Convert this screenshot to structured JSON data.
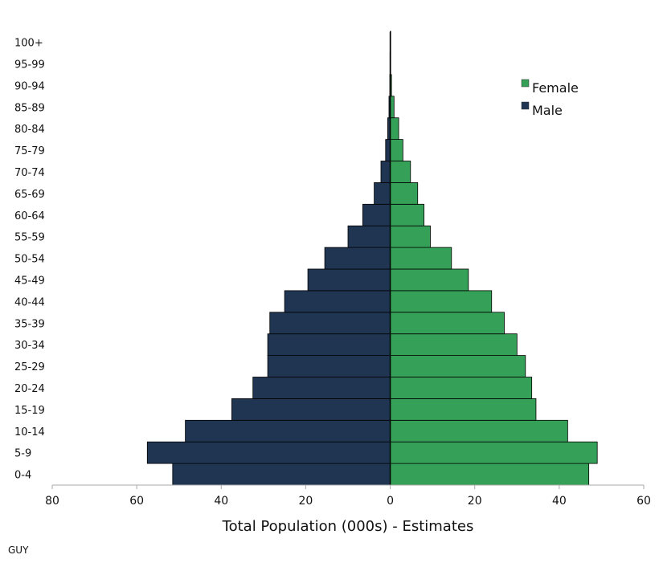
{
  "chart_data": {
    "type": "bar",
    "orientation": "horizontal",
    "subtype": "population-pyramid",
    "title": "",
    "xlabel": "Total Population (000s) - Estimates",
    "ylabel": "",
    "xlim": [
      -80,
      60
    ],
    "x_ticks": [
      -80,
      -60,
      -40,
      -20,
      0,
      20,
      40,
      60
    ],
    "x_tick_labels": [
      "80",
      "60",
      "40",
      "20",
      "0",
      "20",
      "40",
      "60"
    ],
    "grid": false,
    "legend_position": "top-right",
    "categories": [
      "0-4",
      "5-9",
      "10-14",
      "15-19",
      "20-24",
      "25-29",
      "30-34",
      "35-39",
      "40-44",
      "45-49",
      "50-54",
      "55-59",
      "60-64",
      "65-69",
      "70-74",
      "75-79",
      "80-84",
      "85-89",
      "90-94",
      "95-99",
      "100+"
    ],
    "series": [
      {
        "name": "Female",
        "color": "#35a057",
        "values": [
          47,
          49,
          42,
          34.5,
          33.5,
          32,
          30,
          27,
          24,
          18.5,
          14.5,
          9.5,
          8,
          6.5,
          4.8,
          3,
          2,
          0.9,
          0.3,
          0.1,
          0.05
        ]
      },
      {
        "name": "Male",
        "color": "#1f3552",
        "values": [
          51.5,
          57.5,
          48.5,
          37.5,
          32.5,
          29,
          29,
          28.5,
          25,
          19.5,
          15.5,
          10,
          6.5,
          3.8,
          2.2,
          1.1,
          0.6,
          0.3,
          0.1,
          0.05,
          0.02
        ]
      }
    ],
    "annotation": "GUY"
  }
}
